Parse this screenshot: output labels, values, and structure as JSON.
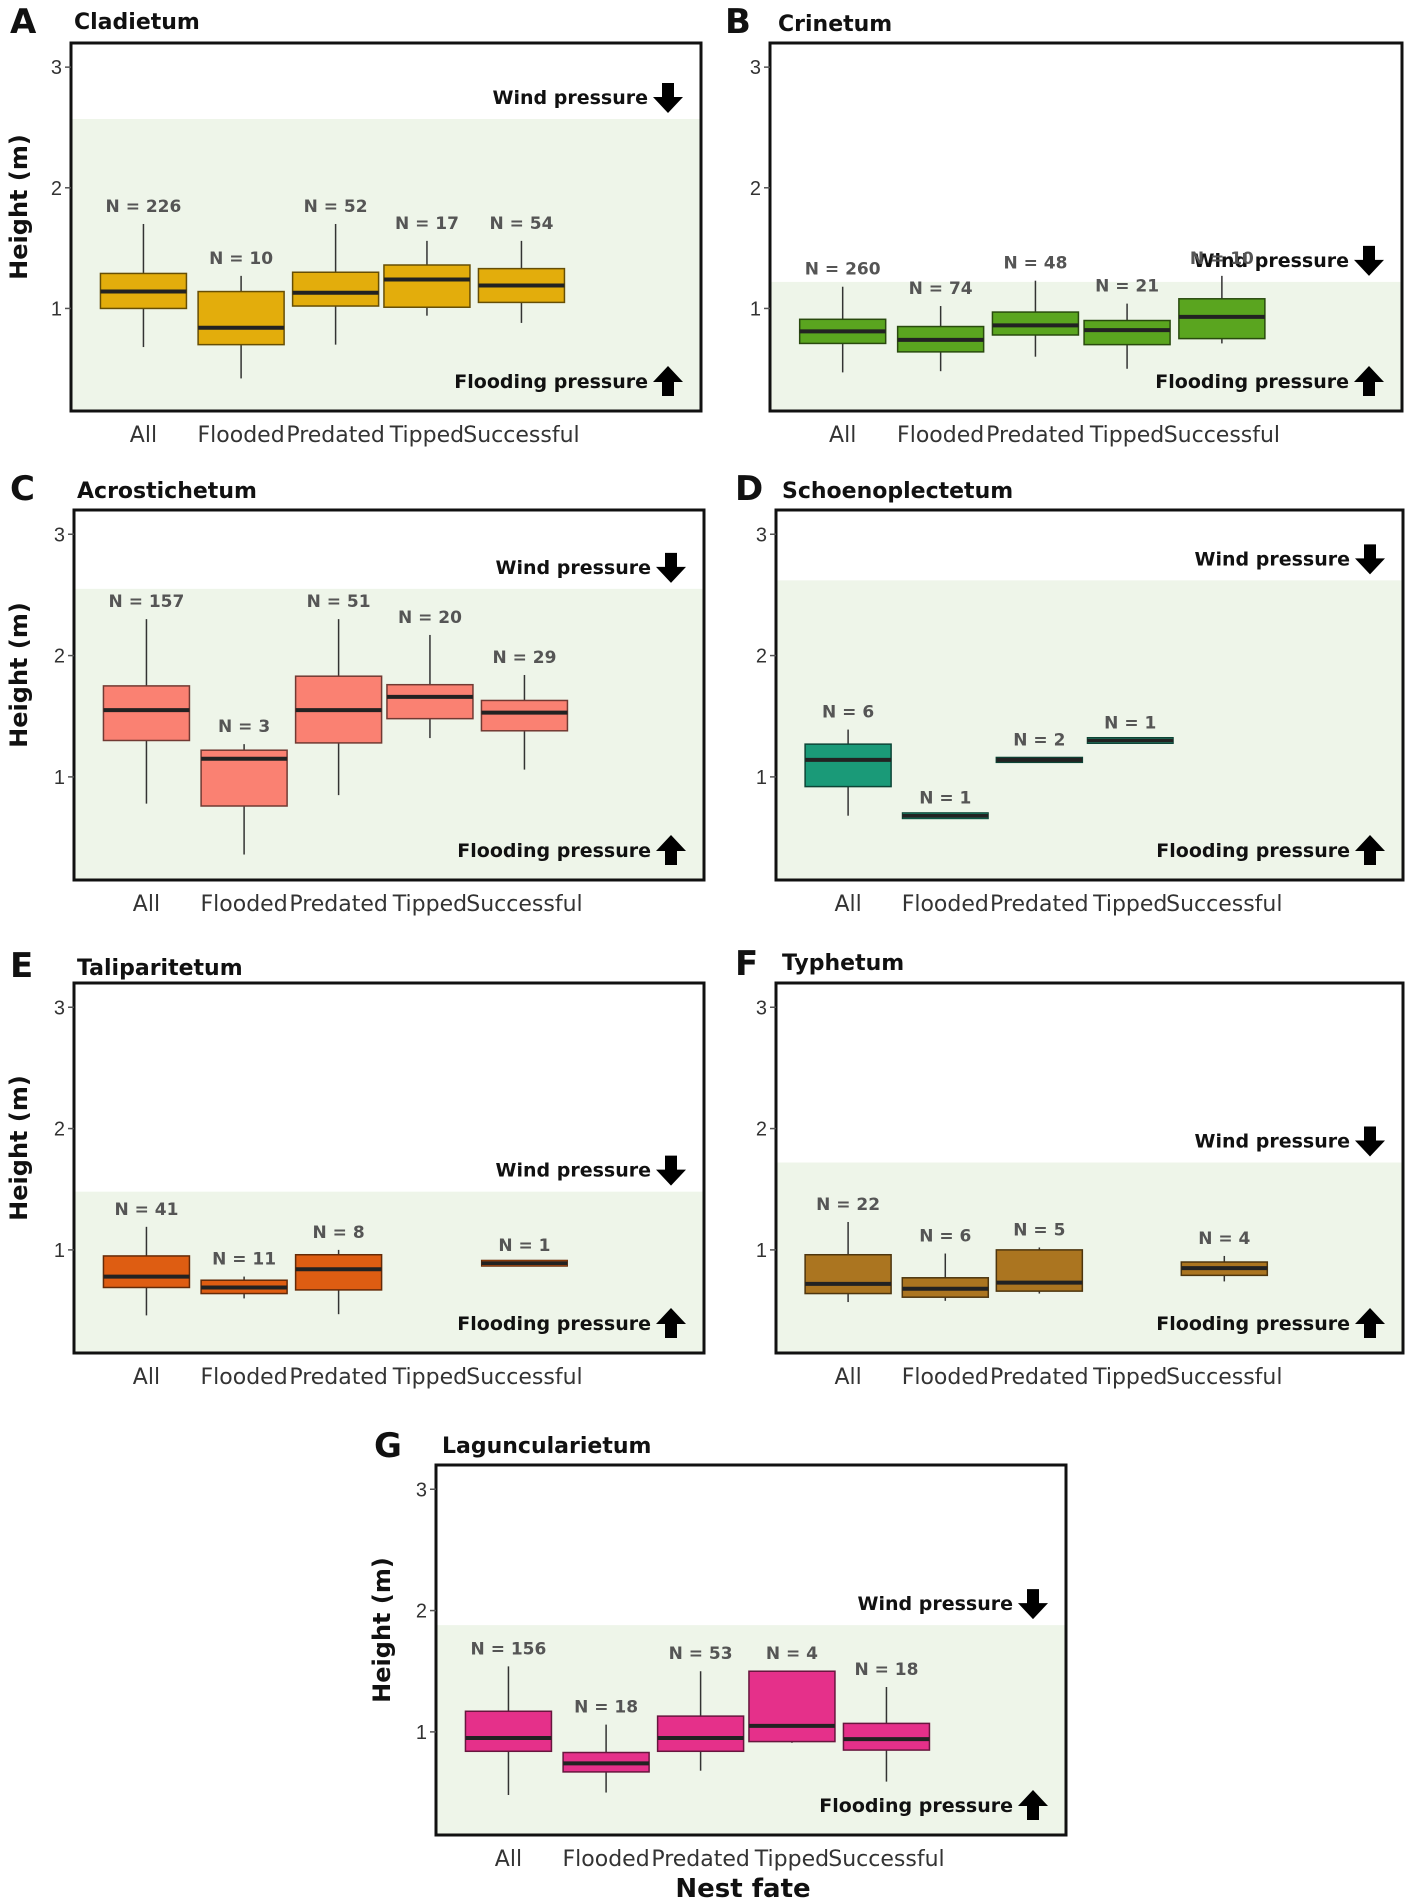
{
  "chart_data": {
    "type": "boxplot",
    "ylabel": "Height (m)",
    "xlabel": "Nest fate",
    "categories": [
      "All",
      "Flooded",
      "Predated",
      "Tipped",
      "Successful"
    ],
    "ylim": [
      0.15,
      3.2
    ],
    "yticks": [
      1,
      2,
      3
    ],
    "wind_label": "Wind pressure",
    "flood_label": "Flooding pressure",
    "panels": [
      {
        "letter": "A",
        "title": "Cladietum",
        "color": "#e3ad0c",
        "shade_top": 2.57,
        "boxes": [
          {
            "category": "All",
            "n": "N = 226",
            "whislo": 0.68,
            "q1": 1.0,
            "med": 1.14,
            "q3": 1.29,
            "whishi": 1.7
          },
          {
            "category": "Flooded",
            "n": "N = 10",
            "whislo": 0.42,
            "q1": 0.7,
            "med": 0.84,
            "q3": 1.14,
            "whishi": 1.27
          },
          {
            "category": "Predated",
            "n": "N = 52",
            "whislo": 0.7,
            "q1": 1.02,
            "med": 1.13,
            "q3": 1.3,
            "whishi": 1.7
          },
          {
            "category": "Tipped",
            "n": "N = 17",
            "whislo": 0.94,
            "q1": 1.01,
            "med": 1.24,
            "q3": 1.36,
            "whishi": 1.56
          },
          {
            "category": "Successful",
            "n": "N = 54",
            "whislo": 0.88,
            "q1": 1.05,
            "med": 1.19,
            "q3": 1.33,
            "whishi": 1.56
          }
        ]
      },
      {
        "letter": "B",
        "title": "Crinetum",
        "color": "#5aa51f",
        "shade_top": 1.22,
        "boxes": [
          {
            "category": "All",
            "n": "N = 260",
            "whislo": 0.47,
            "q1": 0.71,
            "med": 0.81,
            "q3": 0.91,
            "whishi": 1.18
          },
          {
            "category": "Flooded",
            "n": "N = 74",
            "whislo": 0.48,
            "q1": 0.64,
            "med": 0.74,
            "q3": 0.85,
            "whishi": 1.02
          },
          {
            "category": "Predated",
            "n": "N = 48",
            "whislo": 0.6,
            "q1": 0.78,
            "med": 0.86,
            "q3": 0.97,
            "whishi": 1.23
          },
          {
            "category": "Tipped",
            "n": "N = 21",
            "whislo": 0.5,
            "q1": 0.7,
            "med": 0.82,
            "q3": 0.9,
            "whishi": 1.04
          },
          {
            "category": "Successful",
            "n": "N = 10",
            "whislo": 0.71,
            "q1": 0.75,
            "med": 0.93,
            "q3": 1.08,
            "whishi": 1.27
          }
        ]
      },
      {
        "letter": "C",
        "title": "Acrostichetum",
        "color": "#fa8172",
        "shade_top": 2.55,
        "boxes": [
          {
            "category": "All",
            "n": "N = 157",
            "whislo": 0.78,
            "q1": 1.3,
            "med": 1.55,
            "q3": 1.75,
            "whishi": 2.3
          },
          {
            "category": "Flooded",
            "n": "N = 3",
            "whislo": 0.36,
            "q1": 0.76,
            "med": 1.15,
            "q3": 1.22,
            "whishi": 1.27
          },
          {
            "category": "Predated",
            "n": "N = 51",
            "whislo": 0.85,
            "q1": 1.28,
            "med": 1.55,
            "q3": 1.83,
            "whishi": 2.3
          },
          {
            "category": "Tipped",
            "n": "N = 20",
            "whislo": 1.32,
            "q1": 1.48,
            "med": 1.66,
            "q3": 1.76,
            "whishi": 2.17
          },
          {
            "category": "Successful",
            "n": "N = 29",
            "whislo": 1.06,
            "q1": 1.38,
            "med": 1.53,
            "q3": 1.63,
            "whishi": 1.84
          }
        ]
      },
      {
        "letter": "D",
        "title": "Schoenoplectetum",
        "color": "#1a9a78",
        "shade_top": 2.62,
        "boxes": [
          {
            "category": "All",
            "n": "N = 6",
            "whislo": 0.68,
            "q1": 0.92,
            "med": 1.14,
            "q3": 1.27,
            "whishi": 1.39
          },
          {
            "category": "Flooded",
            "n": "N = 1",
            "whislo": 0.68,
            "q1": 0.68,
            "med": 0.68,
            "q3": 0.68,
            "whishi": 0.68
          },
          {
            "category": "Predated",
            "n": "N = 2",
            "whislo": 1.12,
            "q1": 1.12,
            "med": 1.14,
            "q3": 1.16,
            "whishi": 1.16
          },
          {
            "category": "Tipped",
            "n": "N = 1",
            "whislo": 1.3,
            "q1": 1.3,
            "med": 1.3,
            "q3": 1.3,
            "whishi": 1.3
          },
          {
            "category": "Successful",
            "n": "",
            "whislo": null,
            "q1": null,
            "med": null,
            "q3": null,
            "whishi": null
          }
        ]
      },
      {
        "letter": "E",
        "title": "Taliparitetum",
        "color": "#de5d12",
        "shade_top": 1.48,
        "boxes": [
          {
            "category": "All",
            "n": "N = 41",
            "whislo": 0.46,
            "q1": 0.69,
            "med": 0.78,
            "q3": 0.95,
            "whishi": 1.19
          },
          {
            "category": "Flooded",
            "n": "N = 11",
            "whislo": 0.6,
            "q1": 0.64,
            "med": 0.69,
            "q3": 0.75,
            "whishi": 0.78
          },
          {
            "category": "Predated",
            "n": "N = 8",
            "whislo": 0.47,
            "q1": 0.67,
            "med": 0.84,
            "q3": 0.96,
            "whishi": 1.0
          },
          {
            "category": "Tipped",
            "n": "",
            "whislo": null,
            "q1": null,
            "med": null,
            "q3": null,
            "whishi": null
          },
          {
            "category": "Successful",
            "n": "N = 1",
            "whislo": 0.89,
            "q1": 0.89,
            "med": 0.89,
            "q3": 0.89,
            "whishi": 0.89
          }
        ]
      },
      {
        "letter": "F",
        "title": "Typhetum",
        "color": "#ab7520",
        "shade_top": 1.72,
        "boxes": [
          {
            "category": "All",
            "n": "N = 22",
            "whislo": 0.57,
            "q1": 0.64,
            "med": 0.72,
            "q3": 0.96,
            "whishi": 1.23
          },
          {
            "category": "Flooded",
            "n": "N = 6",
            "whislo": 0.58,
            "q1": 0.61,
            "med": 0.68,
            "q3": 0.77,
            "whishi": 0.97
          },
          {
            "category": "Predated",
            "n": "N = 5",
            "whislo": 0.64,
            "q1": 0.66,
            "med": 0.73,
            "q3": 1.0,
            "whishi": 1.02
          },
          {
            "category": "Tipped",
            "n": "",
            "whislo": null,
            "q1": null,
            "med": null,
            "q3": null,
            "whishi": null
          },
          {
            "category": "Successful",
            "n": "N = 4",
            "whislo": 0.74,
            "q1": 0.79,
            "med": 0.85,
            "q3": 0.9,
            "whishi": 0.95
          }
        ]
      },
      {
        "letter": "G",
        "title": "Laguncularietum",
        "color": "#e5308a",
        "shade_top": 1.88,
        "boxes": [
          {
            "category": "All",
            "n": "N = 156",
            "whislo": 0.48,
            "q1": 0.84,
            "med": 0.95,
            "q3": 1.17,
            "whishi": 1.54
          },
          {
            "category": "Flooded",
            "n": "N = 18",
            "whislo": 0.5,
            "q1": 0.67,
            "med": 0.74,
            "q3": 0.83,
            "whishi": 1.06
          },
          {
            "category": "Predated",
            "n": "N = 53",
            "whislo": 0.68,
            "q1": 0.84,
            "med": 0.95,
            "q3": 1.13,
            "whishi": 1.5
          },
          {
            "category": "Tipped",
            "n": "N = 4",
            "whislo": 0.91,
            "q1": 0.92,
            "med": 1.05,
            "q3": 1.5,
            "whishi": 1.5
          },
          {
            "category": "Successful",
            "n": "N = 18",
            "whislo": 0.59,
            "q1": 0.85,
            "med": 0.94,
            "q3": 1.07,
            "whishi": 1.37
          }
        ]
      }
    ]
  }
}
